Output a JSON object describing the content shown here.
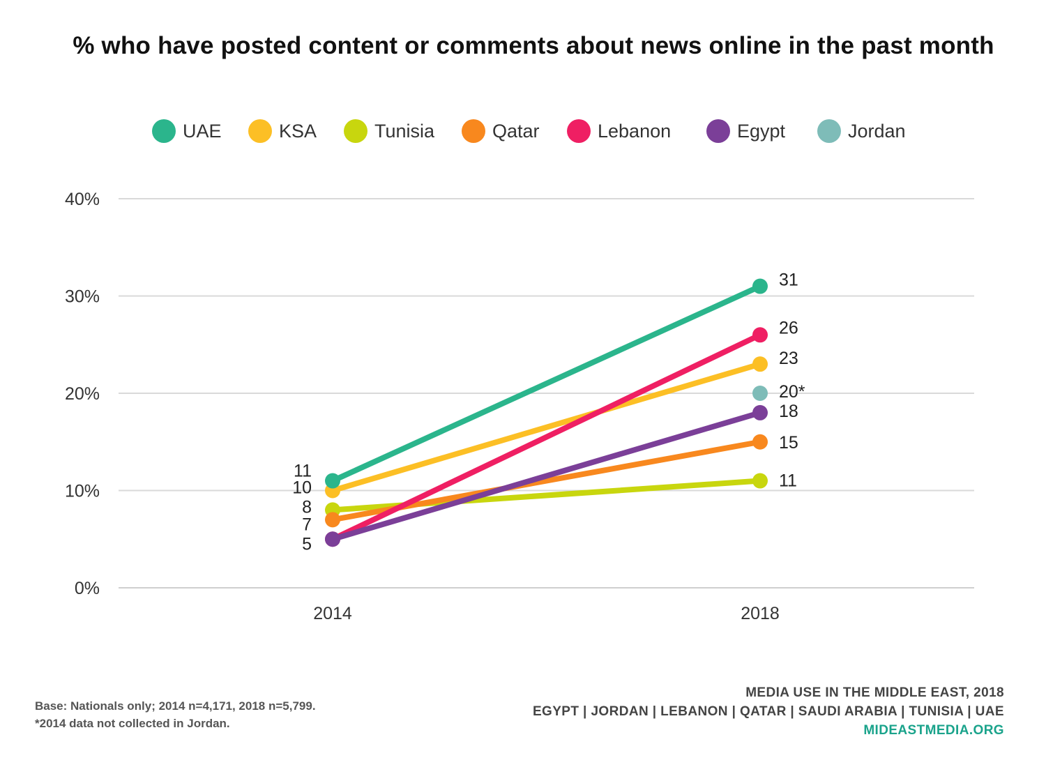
{
  "chart_data": {
    "type": "line",
    "title": "% who have posted content or comments about news online in the past month",
    "xlabel": "",
    "ylabel": "",
    "x": [
      "2014",
      "2018"
    ],
    "y_ticks": [
      "0%",
      "10%",
      "20%",
      "30%",
      "40%"
    ],
    "ylim": [
      0,
      40
    ],
    "grid": true,
    "legend_position": "top",
    "series": [
      {
        "name": "UAE",
        "color": "#2bb58c",
        "values": [
          11,
          31
        ],
        "labels": [
          "11",
          "31"
        ]
      },
      {
        "name": "KSA",
        "color": "#fcbf25",
        "values": [
          10,
          23
        ],
        "labels": [
          "10",
          "23"
        ]
      },
      {
        "name": "Tunisia",
        "color": "#c8d60e",
        "values": [
          8,
          11
        ],
        "labels": [
          "8",
          "11"
        ]
      },
      {
        "name": "Qatar",
        "color": "#f8881e",
        "values": [
          7,
          15
        ],
        "labels": [
          "7",
          "15"
        ]
      },
      {
        "name": "Lebanon",
        "color": "#ef1f63",
        "values": [
          5,
          26
        ],
        "labels": [
          "",
          "26"
        ]
      },
      {
        "name": "Egypt",
        "color": "#7b3f98",
        "values": [
          5,
          18
        ],
        "labels": [
          "5",
          "18"
        ]
      },
      {
        "name": "Jordan",
        "color": "#7ebcb8",
        "values": [
          null,
          20
        ],
        "labels": [
          "",
          "20*"
        ]
      }
    ]
  },
  "footnote": {
    "line1": "Base: Nationals only; 2014 n=4,171, 2018 n=5,799.",
    "line2": "*2014 data not collected in Jordan."
  },
  "credit": {
    "line1": "MEDIA USE IN THE MIDDLE EAST, 2018",
    "line2": "EGYPT | JORDAN | LEBANON | QATAR | SAUDI ARABIA | TUNISIA | UAE",
    "site": "MIDEASTMEDIA.ORG"
  }
}
